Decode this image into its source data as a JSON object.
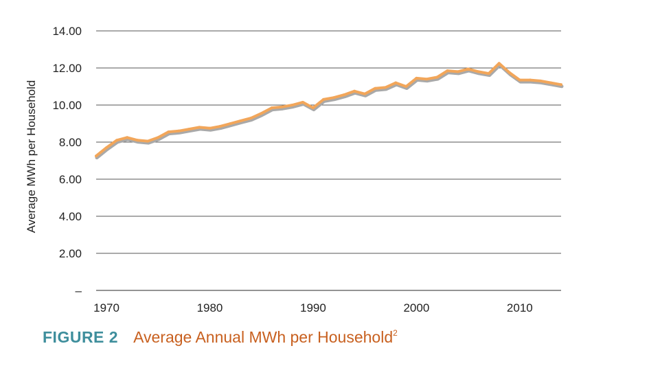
{
  "colors": {
    "line": "#f2a65a",
    "line_shadow": "#a9a9a9",
    "grid": "#555555",
    "figure_label": "#3e8e9c",
    "figure_title": "#c8601f"
  },
  "caption": {
    "figure_label": "FIGURE 2",
    "title": "Average Annual MWh per Household",
    "footnote": "2"
  },
  "chart_data": {
    "type": "line",
    "title": "Average Annual MWh per Household",
    "ylabel": "Average MWh per Household",
    "xlabel": "",
    "ylim": [
      0,
      14
    ],
    "xlim": [
      1969,
      2014
    ],
    "grid": true,
    "legend": "none",
    "y_ticks": [
      {
        "value": 0,
        "label": "–"
      },
      {
        "value": 2,
        "label": "2.00"
      },
      {
        "value": 4,
        "label": "4.00"
      },
      {
        "value": 6,
        "label": "6.00"
      },
      {
        "value": 8,
        "label": "8.00"
      },
      {
        "value": 10,
        "label": "10.00"
      },
      {
        "value": 12,
        "label": "12.00"
      },
      {
        "value": 14,
        "label": "14.00"
      }
    ],
    "x_ticks": [
      {
        "value": 1970,
        "label": "1970"
      },
      {
        "value": 1980,
        "label": "1980"
      },
      {
        "value": 1990,
        "label": "1990"
      },
      {
        "value": 2000,
        "label": "2000"
      },
      {
        "value": 2010,
        "label": "2010"
      }
    ],
    "series": [
      {
        "x": [
          1969,
          1970,
          1971,
          1972,
          1973,
          1974,
          1975,
          1976,
          1977,
          1978,
          1979,
          1980,
          1981,
          1982,
          1983,
          1984,
          1985,
          1986,
          1987,
          1988,
          1989,
          1990,
          1991,
          1992,
          1993,
          1994,
          1995,
          1996,
          1997,
          1998,
          1999,
          2000,
          2001,
          2002,
          2003,
          2004,
          2005,
          2006,
          2007,
          2008,
          2009,
          2010,
          2011,
          2012,
          2013,
          2014
        ],
        "y": [
          7.25,
          7.7,
          8.1,
          8.25,
          8.1,
          8.05,
          8.25,
          8.55,
          8.6,
          8.7,
          8.8,
          8.75,
          8.85,
          9.0,
          9.15,
          9.3,
          9.55,
          9.85,
          9.9,
          10.0,
          10.15,
          9.85,
          10.3,
          10.4,
          10.55,
          10.75,
          10.6,
          10.9,
          10.95,
          11.2,
          11.0,
          11.45,
          11.4,
          11.5,
          11.85,
          11.8,
          11.95,
          11.8,
          11.7,
          12.25,
          11.75,
          11.35,
          11.35,
          11.3,
          11.2,
          11.1
        ]
      }
    ]
  }
}
